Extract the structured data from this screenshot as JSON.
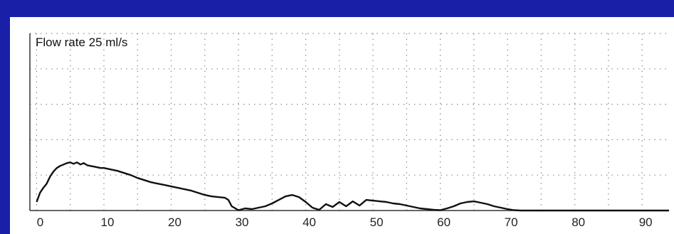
{
  "colors": {
    "background": "#1a1fa8",
    "plot_background": "#ffffff",
    "trace": "#111111",
    "grid": "#8a8a8a"
  },
  "chart_data": {
    "type": "line",
    "title": "Flow rate 25 ml/s",
    "xlabel": "",
    "ylabel": "",
    "x_ticks": [
      "0",
      "10",
      "20",
      "30",
      "40",
      "50",
      "60",
      "70",
      "80",
      "90"
    ],
    "xlim": [
      -1,
      94
    ],
    "ylim": [
      0,
      25
    ],
    "grid": "dotted",
    "series": [
      {
        "x": [
          0,
          0.5,
          1,
          1.5,
          2,
          2.5,
          3,
          3.5,
          4,
          4.5,
          5,
          5.5,
          6,
          6.5,
          7,
          7.5,
          8,
          8.5,
          9,
          9.5,
          10,
          11,
          12,
          13,
          14,
          15,
          16,
          17,
          18,
          19,
          20,
          21,
          22,
          23,
          24,
          25,
          26,
          27,
          28,
          28.5,
          29,
          30,
          31,
          32,
          33,
          34,
          35,
          36,
          37,
          38,
          39,
          40,
          41,
          42,
          43,
          44,
          45,
          46,
          47,
          48,
          49,
          50,
          51,
          52,
          53,
          54,
          55,
          56,
          57,
          58,
          59,
          60,
          61,
          62,
          63,
          64,
          65,
          66,
          67,
          68,
          69,
          70,
          71,
          72,
          80,
          90,
          94
        ],
        "y": [
          1.2,
          2.5,
          3.2,
          3.8,
          4.8,
          5.5,
          6.0,
          6.3,
          6.5,
          6.7,
          6.8,
          6.6,
          6.8,
          6.5,
          6.7,
          6.4,
          6.3,
          6.2,
          6.1,
          6.0,
          6.0,
          5.8,
          5.6,
          5.3,
          5.0,
          4.6,
          4.3,
          4.0,
          3.8,
          3.6,
          3.4,
          3.2,
          3.0,
          2.8,
          2.5,
          2.2,
          2.0,
          1.9,
          1.8,
          1.5,
          0.6,
          0.05,
          0.3,
          0.2,
          0.4,
          0.6,
          1.0,
          1.5,
          2.0,
          2.2,
          1.9,
          1.2,
          0.4,
          0.1,
          0.9,
          0.5,
          1.2,
          0.6,
          1.3,
          0.7,
          1.5,
          1.4,
          1.3,
          1.2,
          1.0,
          0.9,
          0.7,
          0.5,
          0.3,
          0.2,
          0.1,
          0.05,
          0.3,
          0.6,
          1.0,
          1.2,
          1.3,
          1.1,
          0.9,
          0.6,
          0.4,
          0.2,
          0.05,
          0,
          0,
          0,
          0
        ]
      }
    ]
  }
}
